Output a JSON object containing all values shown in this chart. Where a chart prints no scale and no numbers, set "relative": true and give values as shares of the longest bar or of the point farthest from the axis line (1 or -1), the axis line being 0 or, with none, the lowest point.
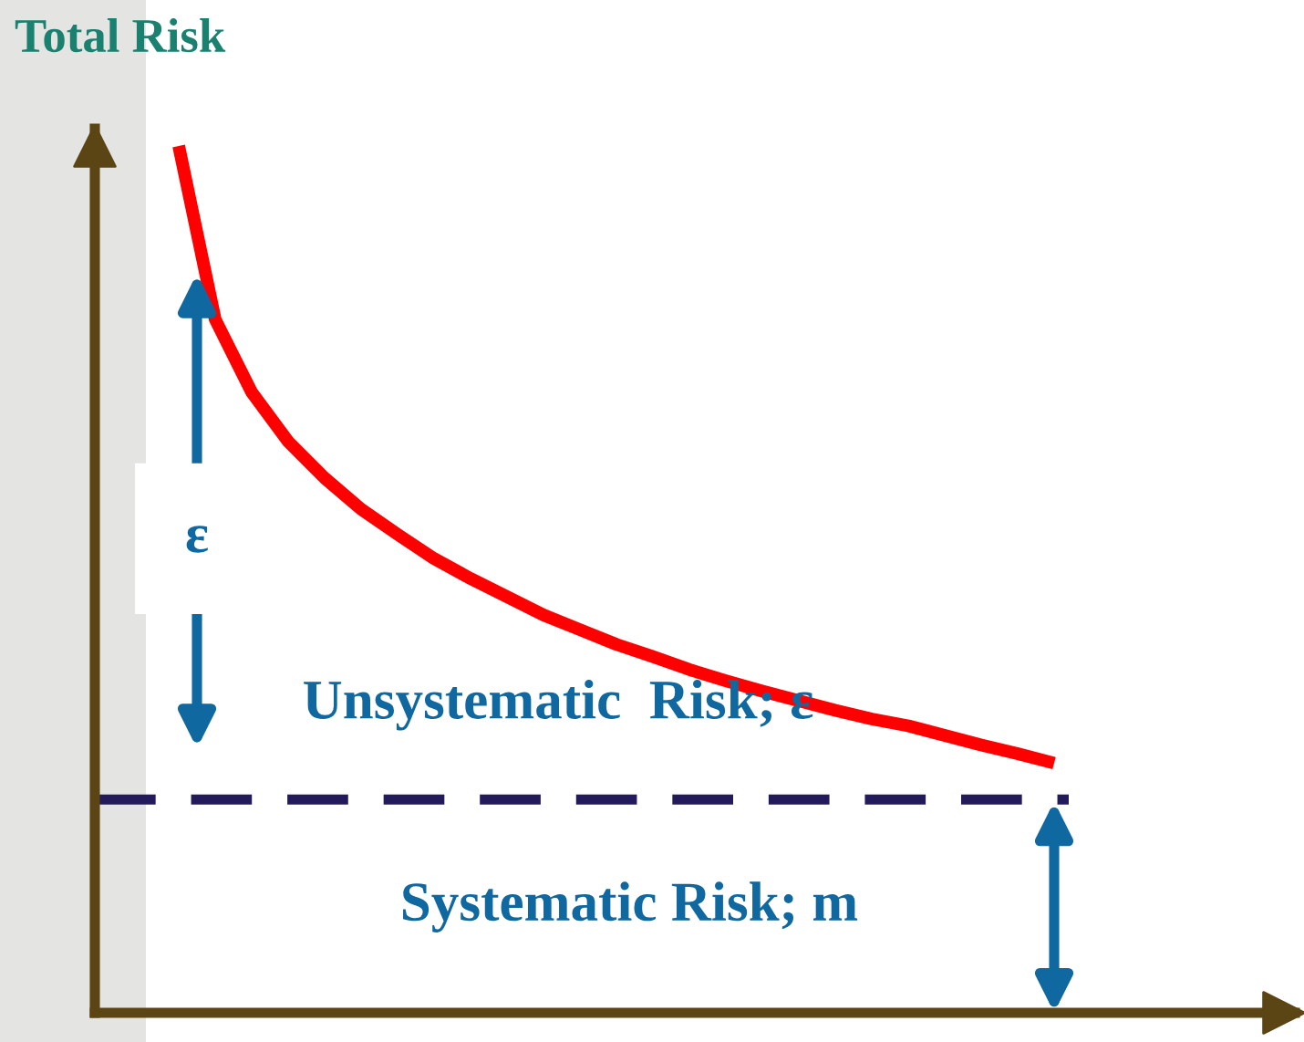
{
  "chart_data": {
    "type": "line",
    "title": "Total Risk",
    "relative": true,
    "categories": [
      null,
      null,
      null,
      null,
      null,
      null,
      null,
      null,
      null,
      null,
      null,
      null,
      null,
      null,
      null,
      null,
      null,
      null,
      null,
      null,
      null,
      null,
      null,
      null,
      null
    ],
    "series": [
      {
        "color": "#ff0000",
        "values": [
          1.0,
          0.8,
          0.716,
          0.659,
          0.617,
          0.581,
          0.552,
          0.524,
          0.501,
          0.48,
          0.459,
          0.442,
          0.425,
          0.411,
          0.396,
          0.383,
          0.371,
          0.36,
          0.349,
          0.339,
          0.331,
          0.32,
          0.309,
          0.299,
          0.288
        ]
      }
    ],
    "ref_lines": [
      {
        "axis": "y",
        "value": 0.246,
        "color": "#221a5a",
        "line_style": "dashed"
      }
    ],
    "annotations": [
      "ε",
      "Unsystematic  Risk; ε",
      "Systematic Risk; m"
    ]
  }
}
